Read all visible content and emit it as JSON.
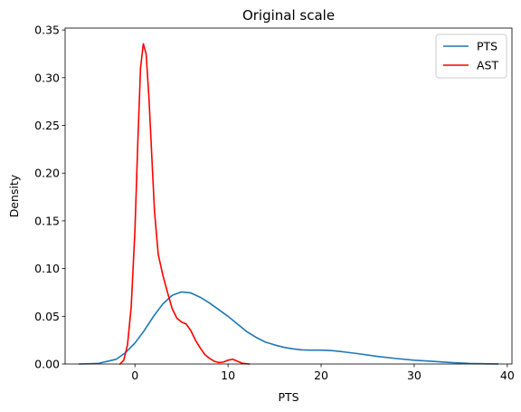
{
  "chart_data": {
    "type": "line",
    "title": "Original scale",
    "xlabel": "PTS",
    "ylabel": "Density",
    "xlim": [
      -7.5,
      40.5
    ],
    "ylim": [
      0,
      0.352
    ],
    "xticks": [
      0,
      10,
      20,
      30,
      40
    ],
    "xtick_labels": [
      "0",
      "10",
      "20",
      "30",
      "40"
    ],
    "yticks": [
      0.0,
      0.05,
      0.1,
      0.15,
      0.2,
      0.25,
      0.3,
      0.35
    ],
    "ytick_labels": [
      "0.00",
      "0.05",
      "0.10",
      "0.15",
      "0.20",
      "0.25",
      "0.30",
      "0.35"
    ],
    "grid": false,
    "legend_position": "top-right",
    "series": [
      {
        "name": "PTS",
        "color": "#1f77b4",
        "points": [
          [
            -6.0,
            0.0
          ],
          [
            -4.0,
            0.0005
          ],
          [
            -2.0,
            0.005
          ],
          [
            -1.0,
            0.012
          ],
          [
            0.0,
            0.022
          ],
          [
            1.0,
            0.035
          ],
          [
            2.0,
            0.05
          ],
          [
            3.0,
            0.063
          ],
          [
            4.0,
            0.072
          ],
          [
            5.0,
            0.0755
          ],
          [
            6.0,
            0.0745
          ],
          [
            7.0,
            0.07
          ],
          [
            8.0,
            0.064
          ],
          [
            9.0,
            0.057
          ],
          [
            10.0,
            0.05
          ],
          [
            11.0,
            0.042
          ],
          [
            12.0,
            0.034
          ],
          [
            13.0,
            0.028
          ],
          [
            14.0,
            0.023
          ],
          [
            15.0,
            0.02
          ],
          [
            16.0,
            0.0175
          ],
          [
            17.0,
            0.0158
          ],
          [
            18.0,
            0.0148
          ],
          [
            19.0,
            0.0145
          ],
          [
            20.0,
            0.0145
          ],
          [
            21.0,
            0.0142
          ],
          [
            22.0,
            0.0132
          ],
          [
            24.0,
            0.0108
          ],
          [
            26.0,
            0.008
          ],
          [
            28.0,
            0.0058
          ],
          [
            30.0,
            0.004
          ],
          [
            32.0,
            0.0028
          ],
          [
            34.0,
            0.0015
          ],
          [
            36.0,
            0.0006
          ],
          [
            38.0,
            0.0002
          ],
          [
            39.0,
            0.0001
          ]
        ]
      },
      {
        "name": "AST",
        "color": "#ff0000",
        "points": [
          [
            -1.6,
            0.0
          ],
          [
            -1.2,
            0.004
          ],
          [
            -0.8,
            0.02
          ],
          [
            -0.4,
            0.06
          ],
          [
            0.0,
            0.14
          ],
          [
            0.3,
            0.23
          ],
          [
            0.6,
            0.31
          ],
          [
            0.9,
            0.3355
          ],
          [
            1.2,
            0.325
          ],
          [
            1.5,
            0.28
          ],
          [
            1.8,
            0.22
          ],
          [
            2.1,
            0.16
          ],
          [
            2.5,
            0.115
          ],
          [
            3.0,
            0.093
          ],
          [
            3.5,
            0.075
          ],
          [
            4.0,
            0.058
          ],
          [
            4.5,
            0.048
          ],
          [
            5.0,
            0.044
          ],
          [
            5.5,
            0.042
          ],
          [
            6.0,
            0.035
          ],
          [
            6.5,
            0.025
          ],
          [
            7.0,
            0.017
          ],
          [
            7.5,
            0.01
          ],
          [
            8.0,
            0.006
          ],
          [
            8.5,
            0.003
          ],
          [
            9.0,
            0.0015
          ],
          [
            9.5,
            0.002
          ],
          [
            10.0,
            0.004
          ],
          [
            10.5,
            0.005
          ],
          [
            11.0,
            0.003
          ],
          [
            11.5,
            0.0008
          ],
          [
            12.3,
            0.0
          ]
        ]
      }
    ]
  }
}
